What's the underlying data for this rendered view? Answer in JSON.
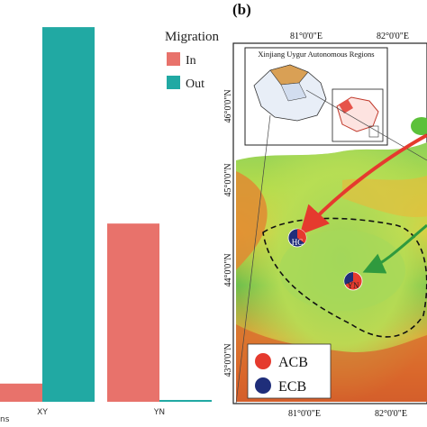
{
  "panel_b_label": "(b)",
  "chart_data": {
    "type": "bar",
    "categories": [
      "XY",
      "YN"
    ],
    "series": [
      {
        "name": "In",
        "color": "#E8726B",
        "values": [
          0.5,
          4.9
        ]
      },
      {
        "name": "Out",
        "color": "#21A9A3",
        "values": [
          10.3,
          0.05
        ]
      }
    ],
    "legend": {
      "title": "Migration",
      "placement": "top-right"
    },
    "ylim": [
      0,
      10.6
    ],
    "grid": false,
    "xlabel_fragment": "ns"
  },
  "map": {
    "inset_title": "Xinjiang Uygur Autonomous Regions",
    "lon_ticks": [
      "81°0'0\"E",
      "82°0'0\"E"
    ],
    "lat_ticks": [
      "46°0'0\"N",
      "45°0'0\"N",
      "44°0'0\"N",
      "43°0'0\"N"
    ],
    "sites": [
      "HC",
      "YN"
    ],
    "legend": [
      {
        "label": "ACB",
        "color": "#E53A2E"
      },
      {
        "label": "ECB",
        "color": "#1F2E7A"
      }
    ]
  }
}
